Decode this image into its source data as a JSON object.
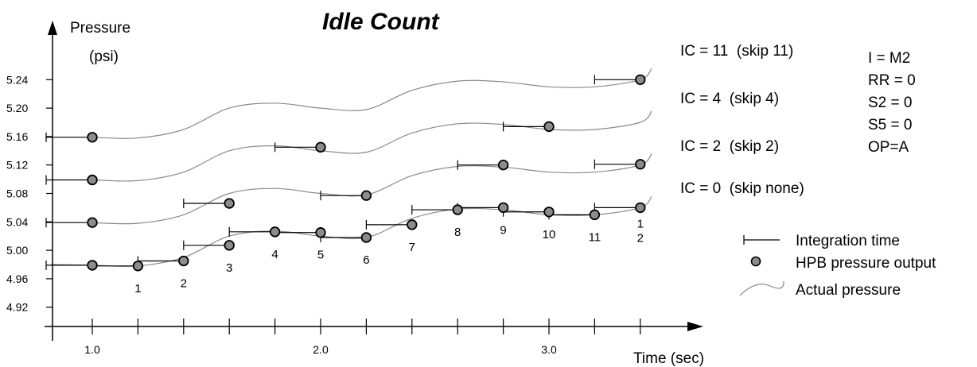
{
  "chart_data": {
    "type": "line",
    "title": "Idle Count",
    "ylabel_line1": "Pressure",
    "ylabel_line2": "(psi)",
    "xlabel": "Time (sec)",
    "x_ticks": [
      "1.0",
      "2.0",
      "3.0"
    ],
    "x_tick_values": [
      1.0,
      2.0,
      3.0
    ],
    "y_ticks": [
      "4.92",
      "4.96",
      "5.00",
      "5.04",
      "5.08",
      "5.12",
      "5.16",
      "5.20",
      "5.24"
    ],
    "y_tick_values": [
      4.92,
      4.96,
      5.0,
      5.04,
      5.08,
      5.12,
      5.16,
      5.2,
      5.24
    ],
    "xlim": [
      0.82,
      3.4
    ],
    "ylim": [
      4.89,
      5.275
    ],
    "sample_times": [
      1.0,
      1.2,
      1.4,
      1.6,
      1.8,
      2.0,
      2.2,
      2.4,
      2.6,
      2.8,
      3.0,
      3.2,
      3.4
    ],
    "series": [
      {
        "name": "IC = 0  (skip none)",
        "offset": 0.0,
        "samples": [
          {
            "t": 1.0,
            "p": 4.979,
            "label": ""
          },
          {
            "t": 1.2,
            "p": 4.978,
            "label": "1"
          },
          {
            "t": 1.4,
            "p": 4.985,
            "label": "2"
          },
          {
            "t": 1.6,
            "p": 5.007,
            "label": "3"
          },
          {
            "t": 1.8,
            "p": 5.026,
            "label": "4"
          },
          {
            "t": 2.0,
            "p": 5.025,
            "label": "5"
          },
          {
            "t": 2.2,
            "p": 5.018,
            "label": "6"
          },
          {
            "t": 2.4,
            "p": 5.036,
            "label": "7"
          },
          {
            "t": 2.6,
            "p": 5.057,
            "label": "8"
          },
          {
            "t": 2.8,
            "p": 5.06,
            "label": "9"
          },
          {
            "t": 3.0,
            "p": 5.054,
            "label": "10"
          },
          {
            "t": 3.2,
            "p": 5.05,
            "label": "11"
          },
          {
            "t": 3.4,
            "p": 5.06,
            "label": "1\n2"
          }
        ]
      },
      {
        "name": "IC = 2  (skip 2)",
        "offset": 0.06,
        "samples": [
          {
            "t": 1.0,
            "p": 5.039
          },
          {
            "t": 1.6,
            "p": 5.066
          },
          {
            "t": 2.2,
            "p": 5.077
          },
          {
            "t": 2.8,
            "p": 5.12
          },
          {
            "t": 3.4,
            "p": 5.121
          }
        ]
      },
      {
        "name": "IC = 4  (skip 4)",
        "offset": 0.12,
        "samples": [
          {
            "t": 1.0,
            "p": 5.099
          },
          {
            "t": 2.0,
            "p": 5.145
          },
          {
            "t": 3.0,
            "p": 5.174
          }
        ]
      },
      {
        "name": "IC = 11  (skip 11)",
        "offset": 0.18,
        "samples": [
          {
            "t": 1.0,
            "p": 5.159
          },
          {
            "t": 3.4,
            "p": 5.24
          }
        ]
      }
    ],
    "actual_pressure_base": {
      "t": [
        0.82,
        1.0,
        1.2,
        1.4,
        1.6,
        1.8,
        2.0,
        2.2,
        2.4,
        2.6,
        2.8,
        3.0,
        3.2,
        3.4,
        3.45
      ],
      "p": [
        4.98,
        4.979,
        4.978,
        4.99,
        5.02,
        5.027,
        5.02,
        5.018,
        5.045,
        5.058,
        5.057,
        5.05,
        5.05,
        5.06,
        5.076
      ]
    },
    "conditions": [
      "I = M2",
      "RR = 0",
      "S2 = 0",
      "S5 = 0",
      "OP=A"
    ],
    "legend": {
      "integration_time": "Integration time",
      "hpb_output": "HPB pressure output",
      "actual_pressure": "Actual pressure"
    },
    "colors": {
      "marker_fill": "#8c8c8c",
      "curve": "#8a8a8a",
      "ink": "#000000"
    }
  }
}
